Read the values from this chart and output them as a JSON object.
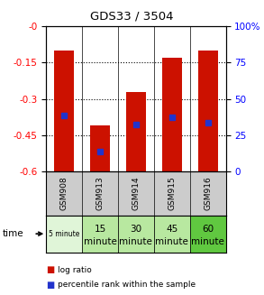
{
  "title": "GDS33 / 3504",
  "samples": [
    "GSM908",
    "GSM913",
    "GSM914",
    "GSM915",
    "GSM916"
  ],
  "log_ratios": [
    -0.1,
    -0.41,
    -0.27,
    -0.13,
    -0.1
  ],
  "percentile_values": [
    -0.37,
    -0.52,
    -0.405,
    -0.375,
    -0.4
  ],
  "ylim_left": [
    -0.6,
    0.0
  ],
  "ylim_right": [
    0,
    100
  ],
  "yticks_left": [
    0.0,
    -0.15,
    -0.3,
    -0.45,
    -0.6
  ],
  "yticks_right_vals": [
    100,
    75,
    50,
    25,
    0
  ],
  "yticks_right_labels": [
    "100%",
    "75",
    "50",
    "25",
    "0"
  ],
  "time_labels_line1": [
    "5 minute",
    "15",
    "30",
    "45",
    "60"
  ],
  "time_labels_line2": [
    "",
    "minute",
    "minute",
    "minute",
    "minute"
  ],
  "time_colors": [
    "#e0f5d8",
    "#b8e8a0",
    "#b8e8a0",
    "#b8e8a0",
    "#60c840"
  ],
  "time_small_first": true,
  "bar_color": "#cc1100",
  "blue_color": "#2233cc",
  "bar_width": 0.55,
  "bg_plot": "#ffffff",
  "bg_sample": "#cccccc",
  "bar_bottom": -0.6
}
